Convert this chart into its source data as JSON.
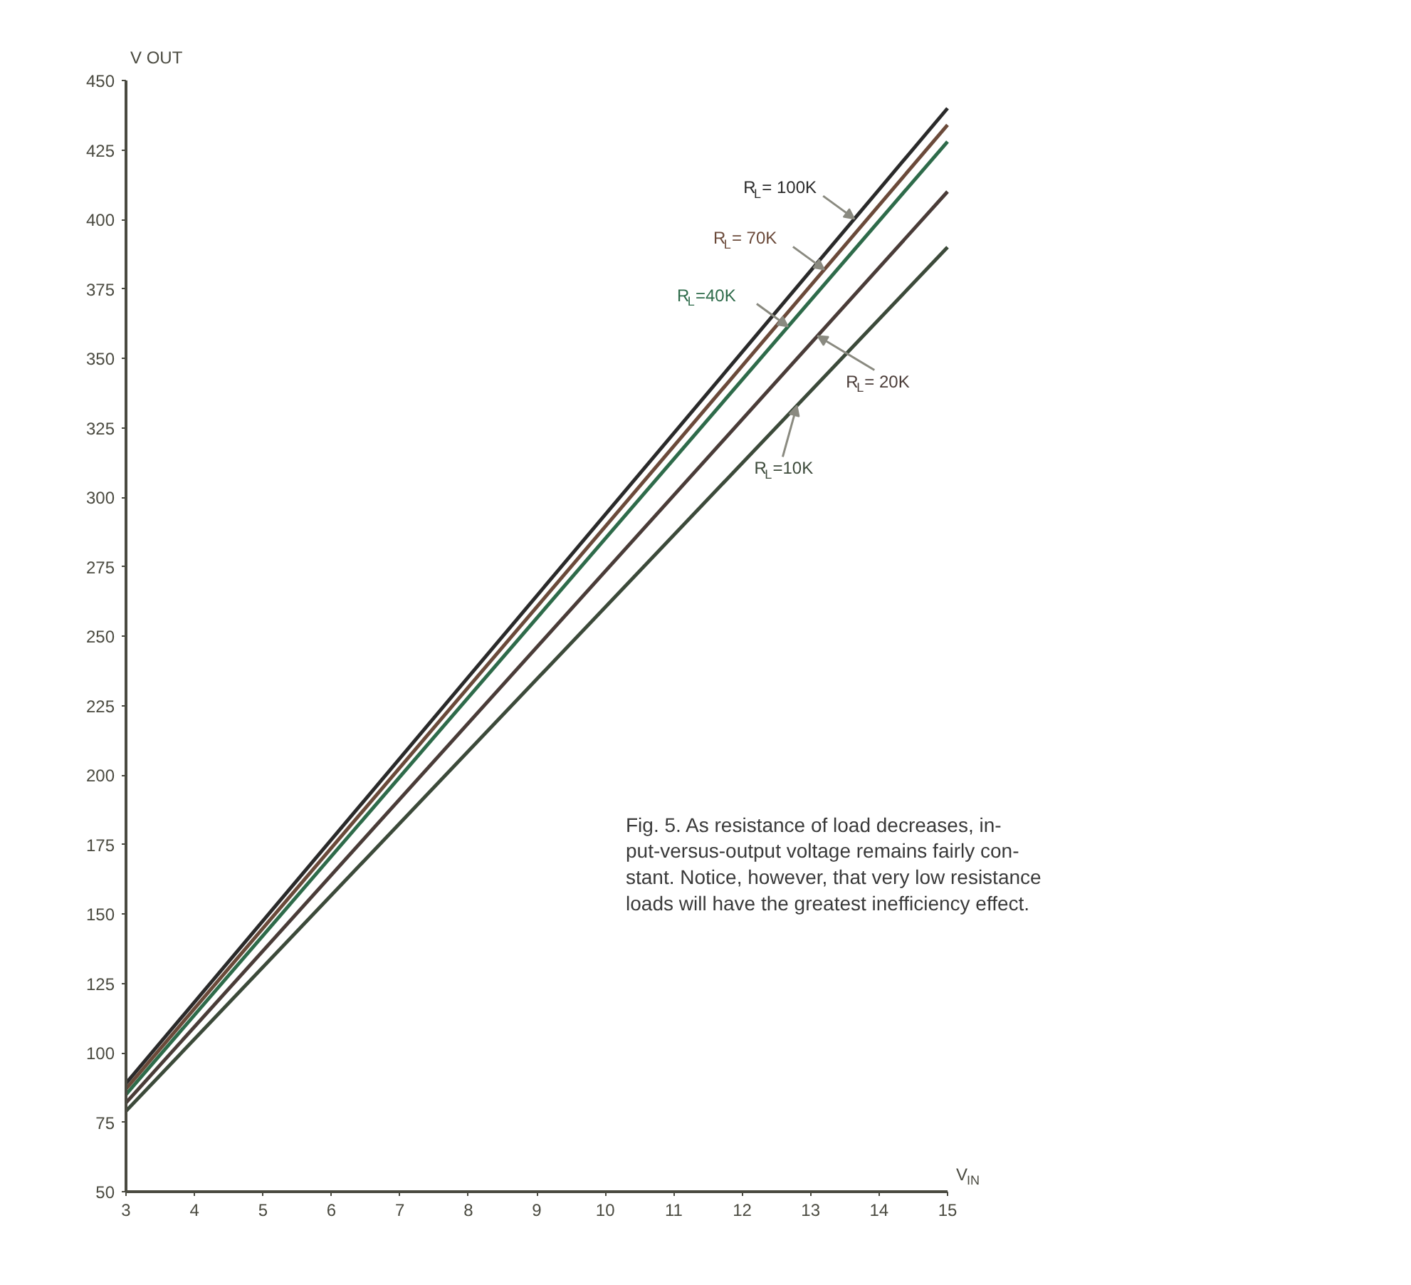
{
  "chart_data": {
    "type": "line",
    "xlabel": "V$_{IN}$",
    "ylabel": "V OUT",
    "x": [
      3,
      15
    ],
    "series": [
      {
        "name": "R$_{L}$=10K",
        "color": "#3c4a3a",
        "values": [
          79,
          390
        ]
      },
      {
        "name": "R$_{L}$= 20K",
        "color": "#4a3c38",
        "values": [
          82,
          410
        ]
      },
      {
        "name": "R$_{L}$=40K",
        "color": "#2e6b4a",
        "values": [
          85,
          428
        ]
      },
      {
        "name": "R$_{L}$= 70K",
        "color": "#6b4a3a",
        "values": [
          87,
          434
        ]
      },
      {
        "name": "R$_{L}$= 100K",
        "color": "#2a2a2a",
        "values": [
          89,
          440
        ]
      }
    ],
    "xlim": [
      3,
      15
    ],
    "ylim": [
      50,
      450
    ],
    "xticks": [
      3,
      4,
      5,
      6,
      7,
      8,
      9,
      10,
      11,
      12,
      13,
      14,
      15
    ],
    "yticks": [
      50,
      75,
      100,
      125,
      150,
      175,
      200,
      225,
      250,
      275,
      300,
      325,
      350,
      375,
      400,
      425,
      450
    ],
    "grid": false,
    "marker": "none",
    "line_style": "solid",
    "annotations": [
      "Fig. 5. As resistance of load decreases, in-\nput-versus-output voltage remains fairly con-\nstant. Notice, however, that very low resistance\nloads will have the greatest inefficiency effect."
    ]
  }
}
